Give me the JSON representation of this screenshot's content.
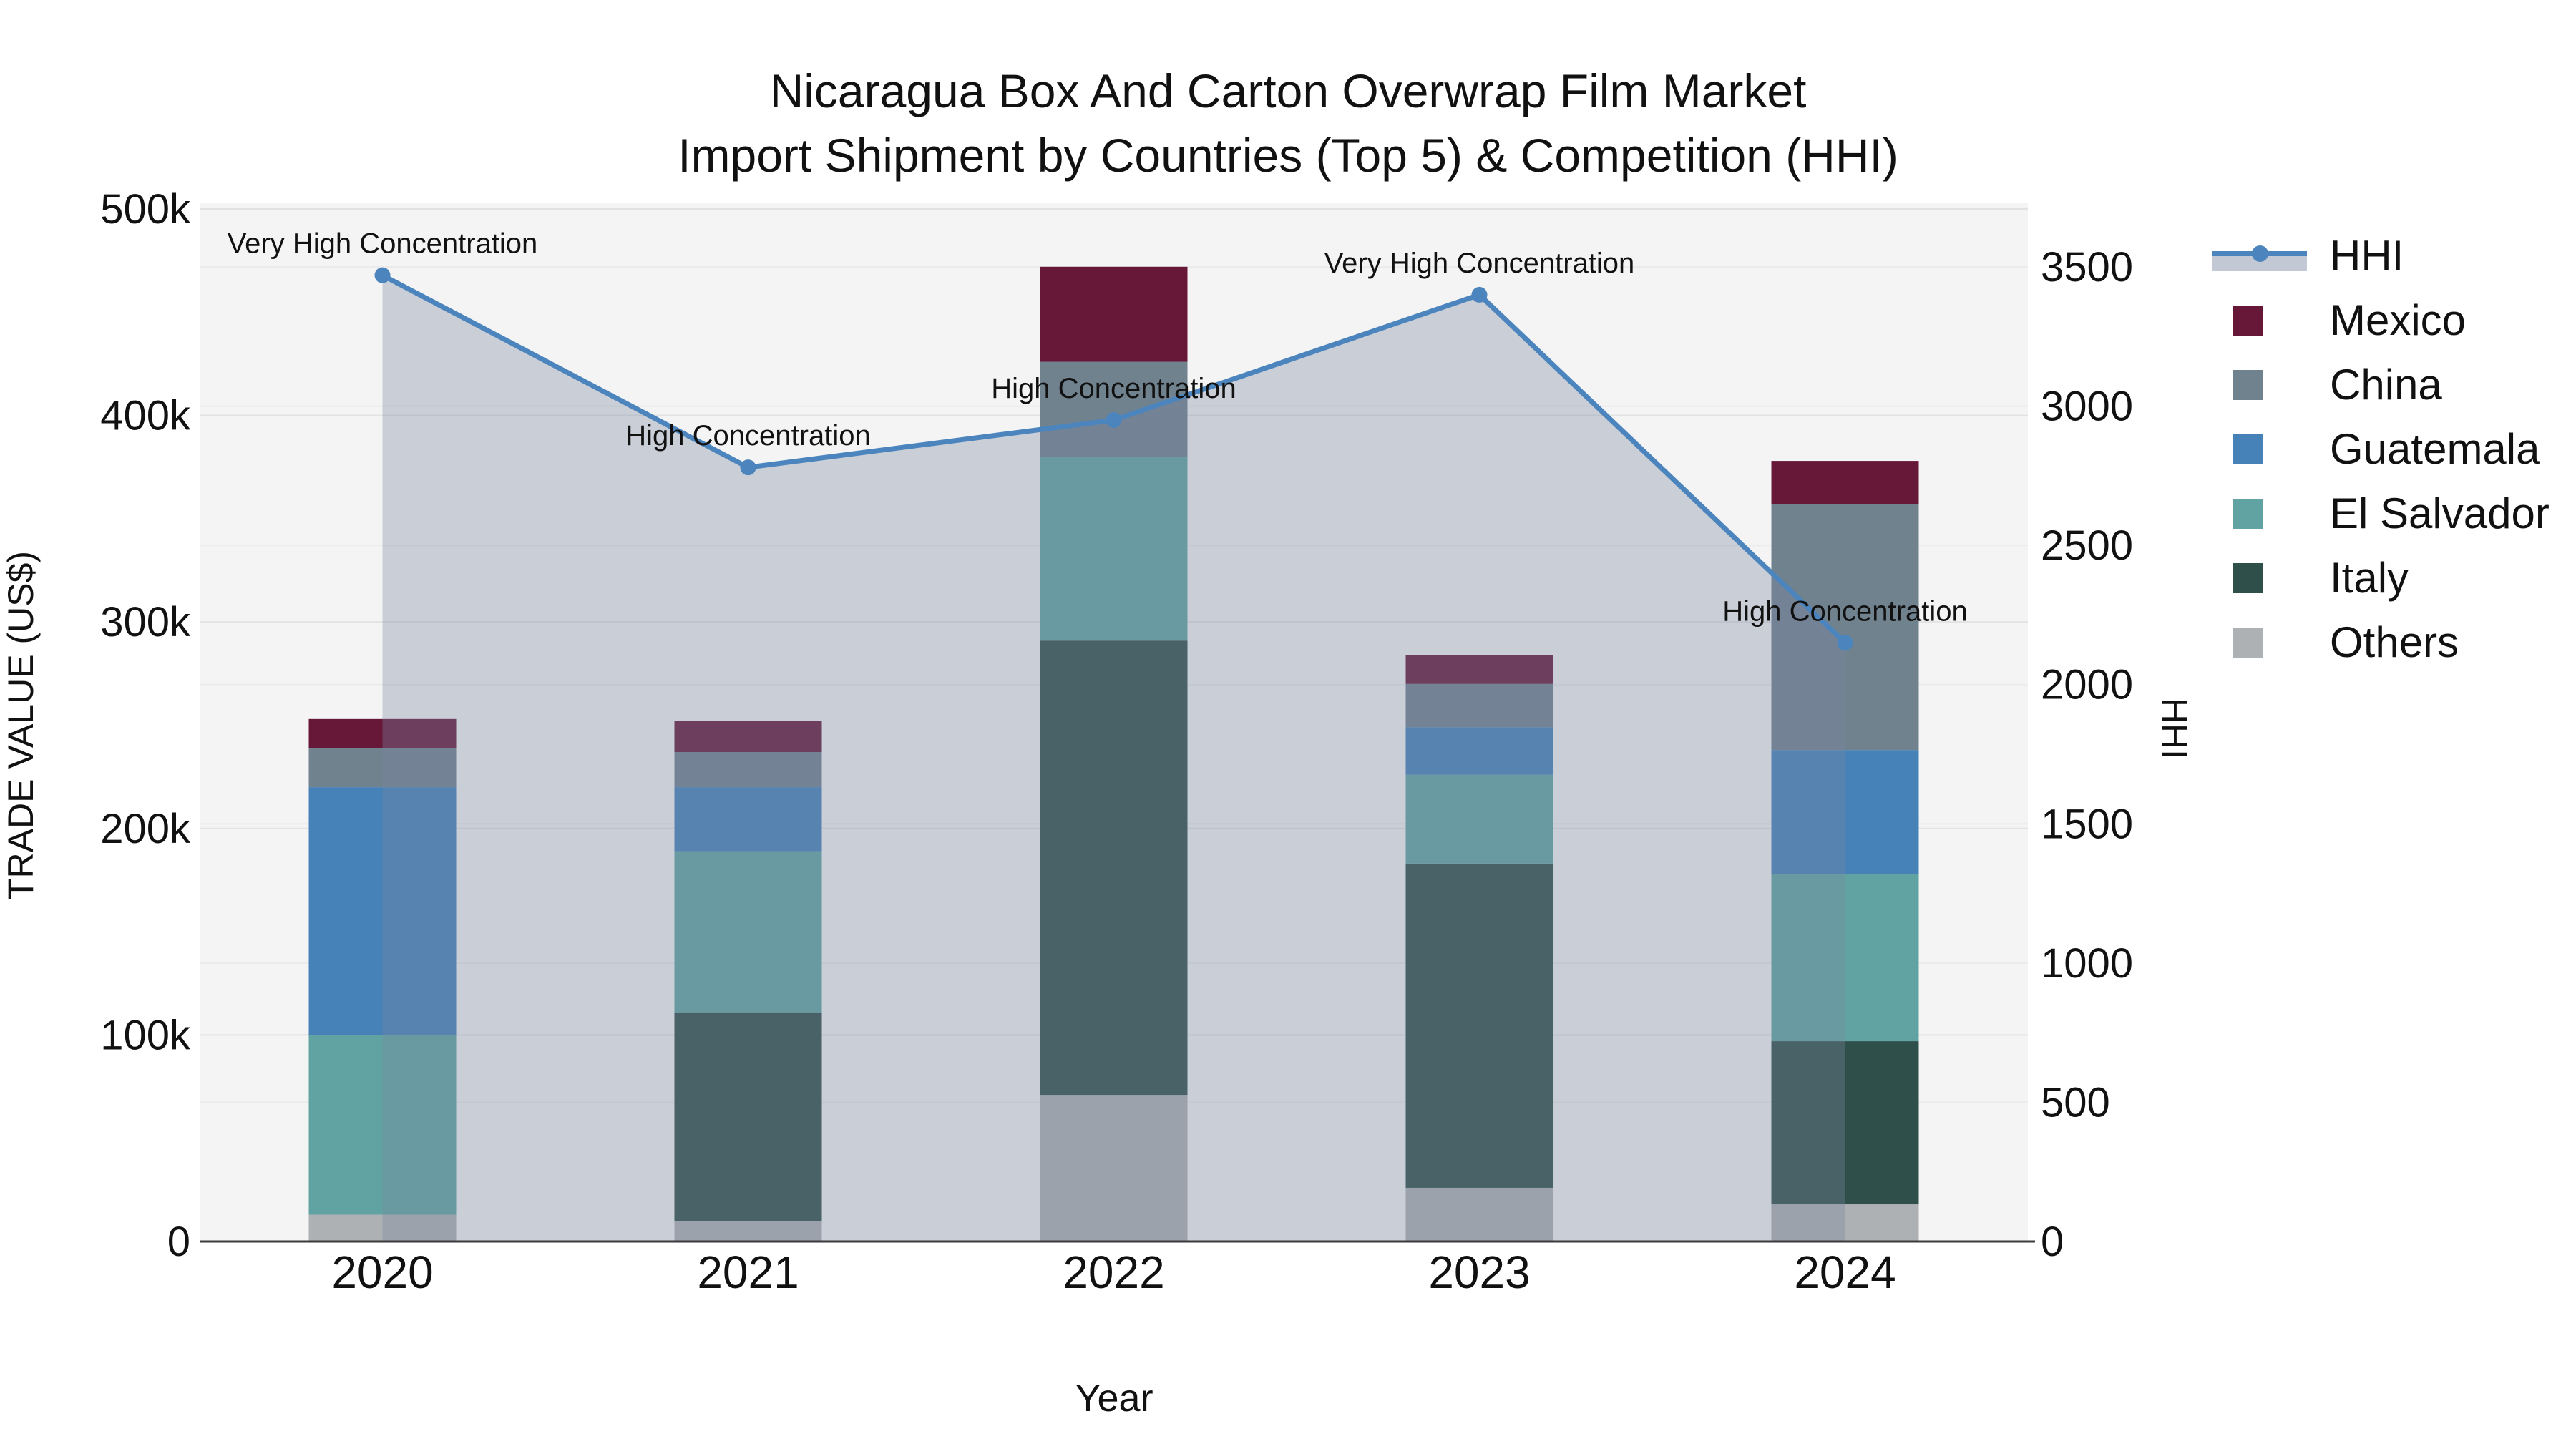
{
  "chart_data": {
    "type": "bar+line",
    "title_line1": "Nicaragua Box And Carton Overwrap Film Market",
    "title_line2": "Import Shipment by Countries (Top 5) & Competition (HHI)",
    "categories": [
      "2020",
      "2021",
      "2022",
      "2023",
      "2024"
    ],
    "series": [
      {
        "name": "Others",
        "color": "#AEB1B3",
        "values": [
          13000,
          10000,
          71000,
          26000,
          18000
        ]
      },
      {
        "name": "Italy",
        "color": "#2F4F4B",
        "values": [
          0,
          101000,
          220000,
          157000,
          79000
        ]
      },
      {
        "name": "El Salvador",
        "color": "#61A3A2",
        "values": [
          87000,
          78000,
          89000,
          43000,
          81000
        ]
      },
      {
        "name": "Guatemala",
        "color": "#4682B8",
        "values": [
          120000,
          31000,
          0,
          23000,
          60000
        ]
      },
      {
        "name": "China",
        "color": "#71828F",
        "values": [
          19000,
          17000,
          46000,
          21000,
          119000
        ]
      },
      {
        "name": "Mexico",
        "color": "#671839",
        "values": [
          14000,
          15000,
          46000,
          14000,
          21000
        ]
      }
    ],
    "line_series": {
      "name": "HHI",
      "color": "#4C85BD",
      "fill_color": "rgba(120,136,160,0.35)",
      "values": [
        3470,
        2780,
        2950,
        3400,
        2150
      ]
    },
    "annotations": [
      {
        "x": "2020",
        "text": "Very High Concentration"
      },
      {
        "x": "2021",
        "text": "High Concentration"
      },
      {
        "x": "2022",
        "text": "High Concentration"
      },
      {
        "x": "2023",
        "text": "Very High Concentration"
      },
      {
        "x": "2024",
        "text": "High Concentration"
      }
    ],
    "y1": {
      "title": "TRADE VALUE (US$)",
      "range": [
        0,
        500000
      ],
      "ticks": [
        {
          "v": 0,
          "label": "0"
        },
        {
          "v": 100000,
          "label": "100k"
        },
        {
          "v": 200000,
          "label": "200k"
        },
        {
          "v": 300000,
          "label": "300k"
        },
        {
          "v": 400000,
          "label": "400k"
        },
        {
          "v": 500000,
          "label": "500k"
        }
      ]
    },
    "y2": {
      "title": "HHI",
      "range": [
        0,
        3500
      ],
      "ticks": [
        {
          "v": 0,
          "label": "0"
        },
        {
          "v": 500,
          "label": "500"
        },
        {
          "v": 1000,
          "label": "1000"
        },
        {
          "v": 1500,
          "label": "1500"
        },
        {
          "v": 2000,
          "label": "2000"
        },
        {
          "v": 2500,
          "label": "2500"
        },
        {
          "v": 3000,
          "label": "3000"
        },
        {
          "v": 3500,
          "label": "3500"
        }
      ]
    },
    "x": {
      "title": "Year"
    },
    "legend": {
      "items": [
        {
          "label": "HHI",
          "type": "line",
          "color": "#4C85BD",
          "fill": "rgba(120,136,160,0.45)"
        },
        {
          "label": "Mexico",
          "type": "swatch",
          "color": "#671839"
        },
        {
          "label": "China",
          "type": "swatch",
          "color": "#71828F"
        },
        {
          "label": "Guatemala",
          "type": "swatch",
          "color": "#4682B8"
        },
        {
          "label": "El Salvador",
          "type": "swatch",
          "color": "#61A3A2"
        },
        {
          "label": "Italy",
          "type": "swatch",
          "color": "#2F4F4B"
        },
        {
          "label": "Others",
          "type": "swatch",
          "color": "#AEB1B3"
        }
      ]
    },
    "colors": {
      "plot_bg": "#f4f4f4",
      "grid_major": "#e2e2e2",
      "grid_minor": "#ebebeb",
      "axis_line": "#3b3b3b",
      "text": "#111111"
    }
  }
}
